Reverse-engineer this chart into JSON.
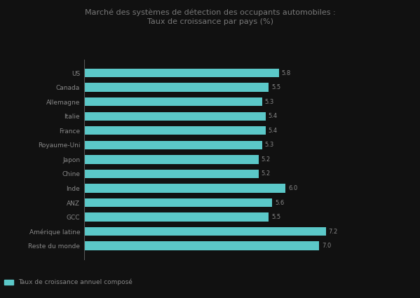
{
  "title_line1": "Marché des systèmes de détection des occupants automobiles :",
  "title_line2": "Taux de croissance par pays (%)",
  "categories": [
    "US",
    "Canada",
    "Allemagne",
    "Italie",
    "France",
    "Royaume-Uni",
    "Japon",
    "Chine",
    "Inde",
    "ANZ",
    "GCC",
    "Amérique latine",
    "Reste du monde"
  ],
  "values": [
    5.8,
    5.5,
    5.3,
    5.4,
    5.4,
    5.3,
    5.2,
    5.2,
    6.0,
    5.6,
    5.5,
    7.2,
    7.0
  ],
  "bar_color": "#5bc8c8",
  "background_color": "#111111",
  "text_color": "#888888",
  "title_color": "#777777",
  "legend_label": "Taux de croissance annuel composé",
  "xlim": [
    0,
    8.5
  ],
  "label_fontsize": 6,
  "title_fontsize": 8,
  "ytick_fontsize": 6.5
}
